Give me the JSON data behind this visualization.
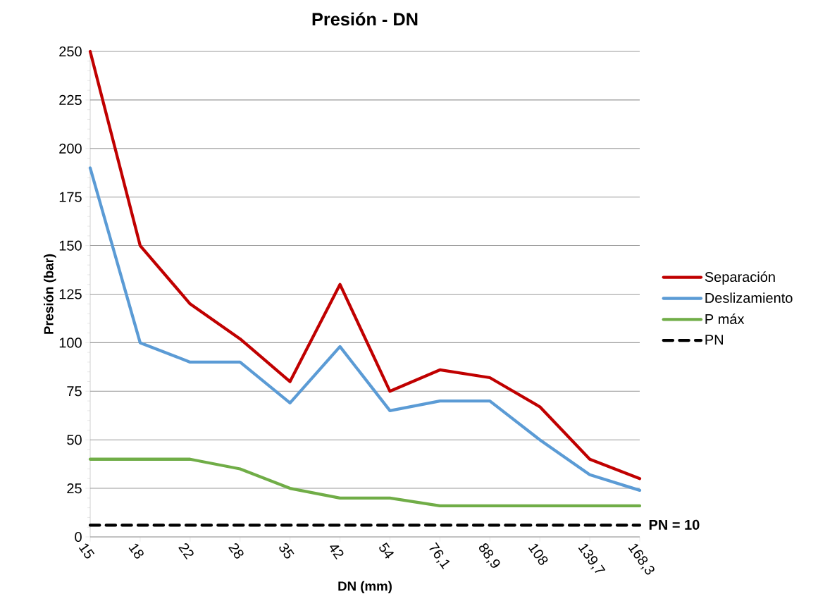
{
  "chart_data": {
    "type": "line",
    "title": "Presión - DN",
    "xlabel": "DN (mm)",
    "ylabel": "Presión (bar)",
    "categories": [
      "15",
      "18",
      "22",
      "28",
      "35",
      "42",
      "54",
      "76,1",
      "88,9",
      "108",
      "139,7",
      "168,3"
    ],
    "series": [
      {
        "name": "Separación",
        "color": "#c00000",
        "values": [
          250,
          150,
          120,
          102,
          80,
          130,
          75,
          86,
          82,
          67,
          40,
          30
        ]
      },
      {
        "name": "Deslizamiento",
        "color": "#5b9bd5",
        "values": [
          190,
          100,
          90,
          90,
          69,
          98,
          65,
          70,
          70,
          50,
          32,
          24
        ]
      },
      {
        "name": "P máx",
        "color": "#70ad47",
        "values": [
          40,
          40,
          40,
          35,
          25,
          20,
          20,
          16,
          16,
          16,
          16,
          16
        ]
      },
      {
        "name": "PN",
        "color": "#000000",
        "line_style": "dashed",
        "values": [
          6,
          6,
          6,
          6,
          6,
          6,
          6,
          6,
          6,
          6,
          6,
          6
        ]
      }
    ],
    "ylim": [
      0,
      250
    ],
    "yticks": [
      0,
      25,
      50,
      75,
      100,
      125,
      150,
      175,
      200,
      225,
      250
    ],
    "grid": "y",
    "legend": "right",
    "annotations": [
      "PN = 10"
    ]
  }
}
